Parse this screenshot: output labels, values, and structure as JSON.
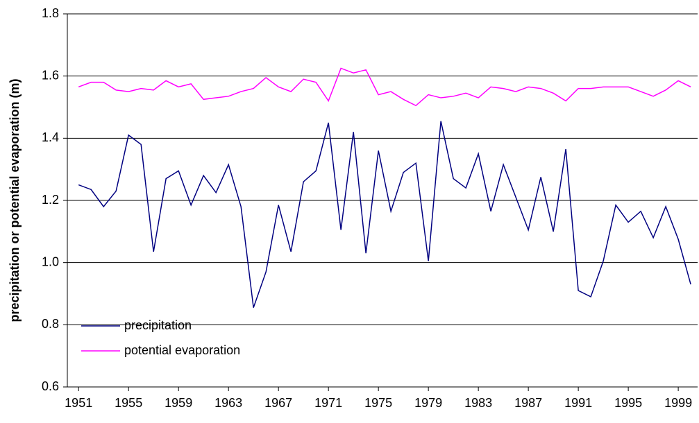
{
  "chart_data": {
    "type": "line",
    "y_label": "precipitation or potential evaporation (m)",
    "x": [
      1951,
      1952,
      1953,
      1954,
      1955,
      1956,
      1957,
      1958,
      1959,
      1960,
      1961,
      1962,
      1963,
      1964,
      1965,
      1966,
      1967,
      1968,
      1969,
      1970,
      1971,
      1972,
      1973,
      1974,
      1975,
      1976,
      1977,
      1978,
      1979,
      1980,
      1981,
      1982,
      1983,
      1984,
      1985,
      1986,
      1987,
      1988,
      1989,
      1990,
      1991,
      1992,
      1993,
      1994,
      1995,
      1996,
      1997,
      1998,
      1999,
      2000
    ],
    "series": [
      {
        "name": "precipitation",
        "color": "#000080",
        "values": [
          1.25,
          1.235,
          1.18,
          1.23,
          1.41,
          1.38,
          1.035,
          1.27,
          1.295,
          1.185,
          1.28,
          1.225,
          1.315,
          1.18,
          0.855,
          0.97,
          1.185,
          1.035,
          1.26,
          1.295,
          1.45,
          1.105,
          1.42,
          1.03,
          1.36,
          1.165,
          1.29,
          1.32,
          1.005,
          1.455,
          1.27,
          1.24,
          1.35,
          1.165,
          1.315,
          1.21,
          1.105,
          1.275,
          1.1,
          1.365,
          0.91,
          0.89,
          1.005,
          1.185,
          1.13,
          1.165,
          1.08,
          1.18,
          1.075,
          0.93
        ]
      },
      {
        "name": "potential evaporation",
        "color": "#ff00ff",
        "values": [
          1.565,
          1.58,
          1.58,
          1.555,
          1.55,
          1.56,
          1.555,
          1.585,
          1.565,
          1.575,
          1.525,
          1.53,
          1.535,
          1.55,
          1.56,
          1.595,
          1.565,
          1.55,
          1.59,
          1.58,
          1.52,
          1.625,
          1.61,
          1.62,
          1.54,
          1.55,
          1.525,
          1.505,
          1.54,
          1.53,
          1.535,
          1.545,
          1.53,
          1.565,
          1.56,
          1.55,
          1.565,
          1.56,
          1.545,
          1.52,
          1.56,
          1.56,
          1.565,
          1.565,
          1.565,
          1.55,
          1.535,
          1.555,
          1.585,
          1.565
        ]
      }
    ],
    "xlim": [
      1950.1,
      2000.55
    ],
    "xticks": [
      1951,
      1955,
      1959,
      1963,
      1967,
      1971,
      1975,
      1979,
      1983,
      1987,
      1991,
      1995,
      1999
    ],
    "ylim": [
      0.6,
      1.8
    ],
    "yticks": [
      0.6,
      0.8,
      {
        "value": 1.0,
        "label": "1.0"
      },
      1.2,
      1.4,
      1.6,
      1.8
    ],
    "grid": true,
    "legend": "lower left"
  }
}
